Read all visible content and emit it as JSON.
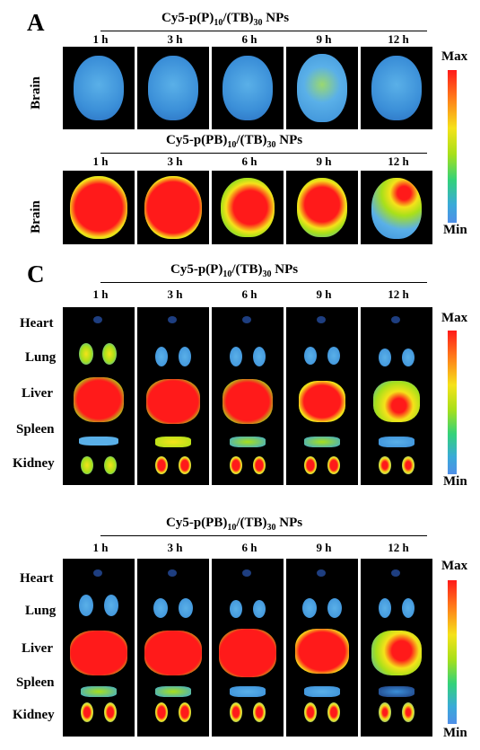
{
  "panels": [
    {
      "letter": "A",
      "title_pre": "Cy5-p(P)",
      "title_sub1": "10",
      "title_mid": "/(TB)",
      "title_sub2": "30",
      "title_post": " NPs",
      "times": [
        "1 h",
        "3 h",
        "6 h",
        "9 h",
        "12 h"
      ],
      "row_label": "Brain"
    },
    {
      "letter": "",
      "title_pre": "Cy5-p(PB)",
      "title_sub1": "10",
      "title_mid": "/(TB)",
      "title_sub2": "30",
      "title_post": " NPs",
      "times": [
        "1 h",
        "3 h",
        "6 h",
        "9 h",
        "12 h"
      ],
      "row_label": "Brain"
    },
    {
      "letter": "C",
      "title_pre": "Cy5-p(P)",
      "title_sub1": "10",
      "title_mid": "/(TB)",
      "title_sub2": "30",
      "title_post": " NPs",
      "times": [
        "1 h",
        "3 h",
        "6 h",
        "9 h",
        "12 h"
      ],
      "organs": [
        "Heart",
        "Lung",
        "Liver",
        "Spleen",
        "Kidney"
      ]
    },
    {
      "letter": "",
      "title_pre": "Cy5-p(PB)",
      "title_sub1": "10",
      "title_mid": "/(TB)",
      "title_sub2": "30",
      "title_post": " NPs",
      "times": [
        "1 h",
        "3 h",
        "6 h",
        "9 h",
        "12 h"
      ],
      "organs": [
        "Heart",
        "Lung",
        "Liver",
        "Spleen",
        "Kidney"
      ]
    }
  ],
  "scale": {
    "max": "Max",
    "min": "Min"
  },
  "colors": {
    "low": "#4f8fe8",
    "mid": "#a8e01a",
    "high": "#ff1a1a",
    "background": "#000000"
  }
}
